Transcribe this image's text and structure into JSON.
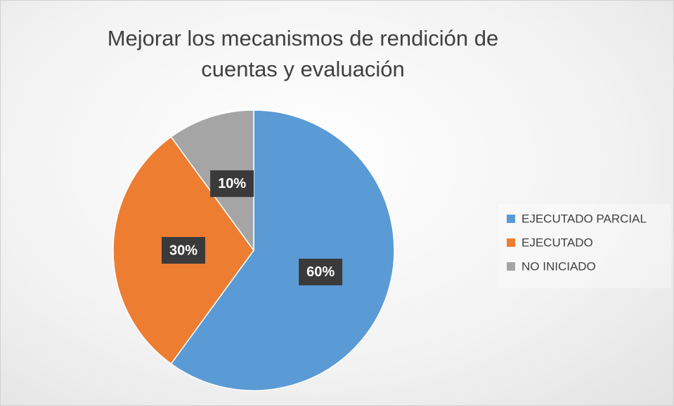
{
  "chart_data": {
    "type": "pie",
    "title": "Mejorar los mecanismos de rendición de cuentas y evaluación",
    "categories": [
      "EJECUTADO PARCIAL",
      "EJECUTADO",
      "NO INICIADO"
    ],
    "values": [
      60,
      30,
      10
    ],
    "value_labels": [
      "60%",
      "30%",
      "10%"
    ],
    "colors": [
      "#5b9bd5",
      "#ed7d31",
      "#a5a5a5"
    ],
    "legend": "right"
  }
}
